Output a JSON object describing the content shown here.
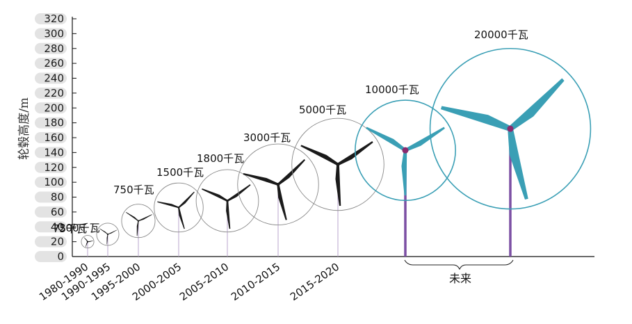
{
  "chart_data": {
    "type": "scatter",
    "ylabel": "轮毂高度/m",
    "ylim": [
      0,
      320
    ],
    "yticks": [
      0,
      20,
      40,
      60,
      80,
      100,
      120,
      140,
      160,
      180,
      200,
      220,
      240,
      260,
      280,
      300,
      320
    ],
    "turbines": [
      {
        "capacity": "75千瓦",
        "period": "1980-1990",
        "hub_height": 20,
        "rotor_diameter": 17
      },
      {
        "capacity": "300千瓦",
        "period": "1990-1995",
        "hub_height": 30,
        "rotor_diameter": 30
      },
      {
        "capacity": "750千瓦",
        "period": "1995-2000",
        "hub_height": 48,
        "rotor_diameter": 45
      },
      {
        "capacity": "1500千瓦",
        "period": "2000-2005",
        "hub_height": 66,
        "rotor_diameter": 66
      },
      {
        "capacity": "1800千瓦",
        "period": "2005-2010",
        "hub_height": 75,
        "rotor_diameter": 84
      },
      {
        "capacity": "3000千瓦",
        "period": "2010-2015",
        "hub_height": 97,
        "rotor_diameter": 109
      },
      {
        "capacity": "5000千瓦",
        "period": "2015-2020",
        "hub_height": 124,
        "rotor_diameter": 124
      },
      {
        "capacity": "10000千瓦",
        "period": "",
        "hub_height": 143,
        "rotor_diameter": 135
      },
      {
        "capacity": "20000千瓦",
        "period": "",
        "hub_height": 172,
        "rotor_diameter": 216
      }
    ],
    "annotation": "未来",
    "colors": {
      "current": "#1a1a1a",
      "future": "#3a9fb5",
      "tower_current": "#b9a5cc",
      "tower_future": "#7b4fa3",
      "hub_future": "#8a2a6e",
      "tick_pill": "#e3e3e3"
    }
  }
}
